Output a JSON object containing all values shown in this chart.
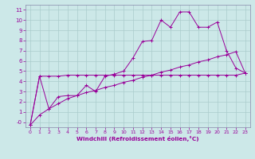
{
  "xlabel": "Windchill (Refroidissement éolien,°C)",
  "x_values": [
    0,
    1,
    2,
    3,
    4,
    5,
    6,
    7,
    8,
    9,
    10,
    11,
    12,
    13,
    14,
    15,
    16,
    17,
    18,
    19,
    20,
    21,
    22,
    23
  ],
  "line1_y": [
    -0.3,
    4.5,
    1.3,
    2.5,
    2.6,
    2.6,
    3.6,
    3.0,
    4.5,
    4.7,
    5.0,
    6.3,
    7.9,
    8.0,
    10.0,
    9.3,
    10.8,
    10.8,
    9.3,
    9.3,
    9.8,
    7.0,
    5.3,
    4.8
  ],
  "line2_y": [
    -0.3,
    0.7,
    1.3,
    1.8,
    2.3,
    2.6,
    2.9,
    3.1,
    3.4,
    3.6,
    3.9,
    4.1,
    4.4,
    4.6,
    4.9,
    5.1,
    5.4,
    5.6,
    5.9,
    6.1,
    6.4,
    6.6,
    6.9,
    4.8
  ],
  "line3_y": [
    -0.3,
    4.5,
    4.5,
    4.5,
    4.6,
    4.6,
    4.6,
    4.6,
    4.6,
    4.6,
    4.6,
    4.6,
    4.6,
    4.6,
    4.6,
    4.6,
    4.6,
    4.6,
    4.6,
    4.6,
    4.6,
    4.6,
    4.6,
    4.8
  ],
  "ylim": [
    -0.5,
    11.5
  ],
  "xlim": [
    -0.5,
    23.5
  ],
  "yticks": [
    0,
    1,
    2,
    3,
    4,
    5,
    6,
    7,
    8,
    9,
    10,
    11
  ],
  "xticks": [
    0,
    1,
    2,
    3,
    4,
    5,
    6,
    7,
    8,
    9,
    10,
    11,
    12,
    13,
    14,
    15,
    16,
    17,
    18,
    19,
    20,
    21,
    22,
    23
  ],
  "line_color": "#990099",
  "bg_color": "#cce8e8",
  "grid_color": "#aacccc",
  "tick_color": "#990099",
  "label_color": "#990099",
  "spine_color": "#8888aa"
}
